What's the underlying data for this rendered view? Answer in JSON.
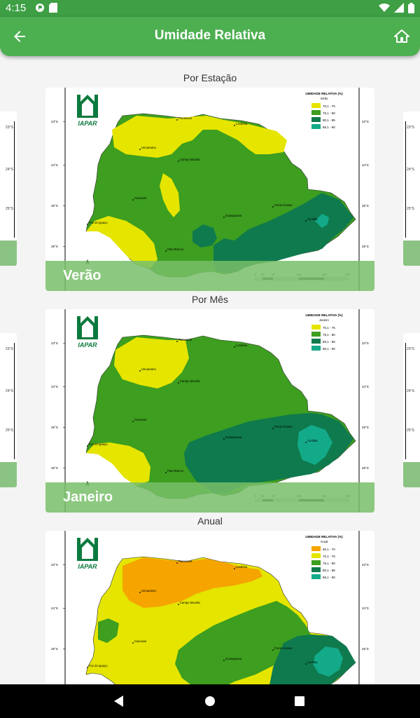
{
  "status_bar": {
    "time": "4:15",
    "icons": [
      "notification-app-icon",
      "sd-card-icon",
      "wifi-icon",
      "signal-icon",
      "battery-icon"
    ]
  },
  "app_bar": {
    "title": "Umidade Relativa",
    "back_icon": "arrow-back-icon",
    "home_icon": "home-icon"
  },
  "colors": {
    "primary": "#4caf50",
    "status_bar": "#3e9f45",
    "map_yellow": "#e5e500",
    "map_green": "#3d9e1f",
    "map_dark_green": "#0f7a4d",
    "map_teal": "#13aa8a",
    "map_orange": "#f5a400"
  },
  "logo_text": "IAPAR",
  "lat_labels": [
    "23°S",
    "24°S",
    "25°S",
    "26°S"
  ],
  "scale_labels": [
    "0",
    "20",
    "50",
    "100",
    "150",
    "200"
  ],
  "cities": {
    "paranavai": "Paranavaí",
    "londrina": "Londrina",
    "umuarama": "Umuarama",
    "campo_mourao": "Campo Mourão",
    "cascavel": "Cascavel",
    "ponta_grossa": "Ponta Grossa",
    "guarapuava": "Guarapuava",
    "foz": "Foz do Iguaçu",
    "curitiba": "Curitiba",
    "pato_branco": "Pato Branco"
  },
  "sections": [
    {
      "label": "Por Estação",
      "caption": "Verão",
      "legend_title": "UMIDADE RELATIVA (%)",
      "legend_subtitle": "Verão",
      "legend": [
        {
          "range": "70,1 - 75",
          "color": "#e5e500"
        },
        {
          "range": "75,1 - 80",
          "color": "#3d9e1f"
        },
        {
          "range": "80,1 - 85",
          "color": "#0f7a4d"
        },
        {
          "range": "85,1 - 90",
          "color": "#13aa8a"
        }
      ]
    },
    {
      "label": "Por Mês",
      "caption": "Janeiro",
      "legend_title": "UMIDADE RELATIVA (%)",
      "legend_subtitle": "Janeiro",
      "legend": [
        {
          "range": "70,1 - 75",
          "color": "#e5e500"
        },
        {
          "range": "75,1 - 80",
          "color": "#3d9e1f"
        },
        {
          "range": "80,1 - 85",
          "color": "#0f7a4d"
        },
        {
          "range": "85,1 - 90",
          "color": "#13aa8a"
        }
      ]
    },
    {
      "label": "Anual",
      "caption": "",
      "legend_title": "UMIDADE RELATIVA (%)",
      "legend_subtitle": "Anual",
      "legend": [
        {
          "range": "65,1 - 70",
          "color": "#f5a400"
        },
        {
          "range": "70,1 - 75",
          "color": "#e5e500"
        },
        {
          "range": "75,1 - 80",
          "color": "#3d9e1f"
        },
        {
          "range": "80,1 - 85",
          "color": "#0f7a4d"
        },
        {
          "range": "85,1 - 90",
          "color": "#13aa8a"
        }
      ]
    }
  ],
  "nav_bar": {
    "back": "nav-back-icon",
    "home": "nav-home-icon",
    "recents": "nav-recents-icon"
  }
}
